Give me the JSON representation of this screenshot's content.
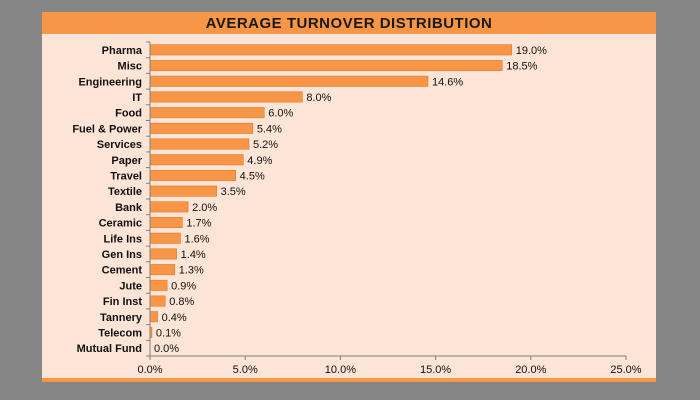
{
  "chart_data": {
    "type": "bar",
    "orientation": "horizontal",
    "title": "AVERAGE TURNOVER DISTRIBUTION",
    "categories": [
      "Pharma",
      "Misc",
      "Engineering",
      "IT",
      "Food",
      "Fuel & Power",
      "Services",
      "Paper",
      "Travel",
      "Textile",
      "Bank",
      "Ceramic",
      "Life Ins",
      "Gen Ins",
      "Cement",
      "Jute",
      "Fin Inst",
      "Tannery",
      "Telecom",
      "Mutual Fund"
    ],
    "values": [
      19.0,
      18.5,
      14.6,
      8.0,
      6.0,
      5.4,
      5.2,
      4.9,
      4.5,
      3.5,
      2.0,
      1.7,
      1.6,
      1.4,
      1.3,
      0.9,
      0.8,
      0.4,
      0.1,
      0.0
    ],
    "value_labels": [
      "19.0%",
      "18.5%",
      "14.6%",
      "8.0%",
      "6.0%",
      "5.4%",
      "5.2%",
      "4.9%",
      "4.5%",
      "3.5%",
      "2.0%",
      "1.7%",
      "1.6%",
      "1.4%",
      "1.3%",
      "0.9%",
      "0.8%",
      "0.4%",
      "0.1%",
      "0.0%"
    ],
    "xlim": [
      0,
      25
    ],
    "xticks": [
      0,
      5,
      10,
      15,
      20,
      25
    ],
    "xtick_labels": [
      "0.0%",
      "5.0%",
      "10.0%",
      "15.0%",
      "20.0%",
      "25.0%"
    ],
    "grid": false,
    "legend": "none",
    "colors": {
      "bar": "#f79646",
      "bar_edge": "#e07b30",
      "title_band": "#f79646",
      "panel": "#fce4d6",
      "frame": "#868686",
      "axis": "#808080"
    }
  }
}
